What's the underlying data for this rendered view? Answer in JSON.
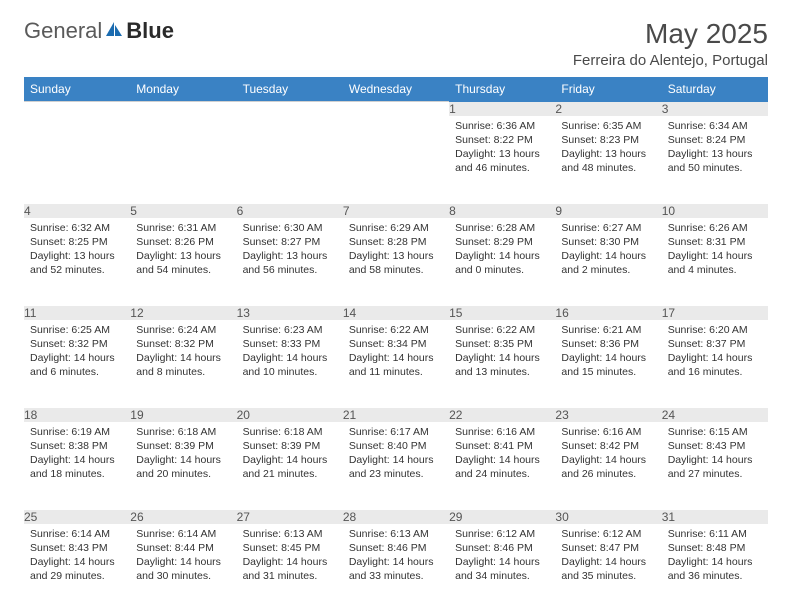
{
  "brand": {
    "part1": "General",
    "part2": "Blue"
  },
  "title": "May 2025",
  "location": "Ferreira do Alentejo, Portugal",
  "colors": {
    "header_bg": "#3a82c4",
    "header_text": "#ffffff",
    "daynum_bg": "#eaeaea",
    "cell_text": "#333333",
    "title_text": "#4a4a4a",
    "logo_gray": "#5a5a5a",
    "logo_blue": "#1a6bb0",
    "border": "#d0d0d0"
  },
  "typography": {
    "title_fontsize": 28,
    "location_fontsize": 15,
    "header_fontsize": 12,
    "daynum_fontsize": 12,
    "cell_fontsize": 10.5,
    "logo_fontsize": 22
  },
  "weekdays": [
    "Sunday",
    "Monday",
    "Tuesday",
    "Wednesday",
    "Thursday",
    "Friday",
    "Saturday"
  ],
  "weeks": [
    [
      null,
      null,
      null,
      null,
      {
        "num": "1",
        "sunrise": "6:36 AM",
        "sunset": "8:22 PM",
        "daylight": "13 hours and 46 minutes."
      },
      {
        "num": "2",
        "sunrise": "6:35 AM",
        "sunset": "8:23 PM",
        "daylight": "13 hours and 48 minutes."
      },
      {
        "num": "3",
        "sunrise": "6:34 AM",
        "sunset": "8:24 PM",
        "daylight": "13 hours and 50 minutes."
      }
    ],
    [
      {
        "num": "4",
        "sunrise": "6:32 AM",
        "sunset": "8:25 PM",
        "daylight": "13 hours and 52 minutes."
      },
      {
        "num": "5",
        "sunrise": "6:31 AM",
        "sunset": "8:26 PM",
        "daylight": "13 hours and 54 minutes."
      },
      {
        "num": "6",
        "sunrise": "6:30 AM",
        "sunset": "8:27 PM",
        "daylight": "13 hours and 56 minutes."
      },
      {
        "num": "7",
        "sunrise": "6:29 AM",
        "sunset": "8:28 PM",
        "daylight": "13 hours and 58 minutes."
      },
      {
        "num": "8",
        "sunrise": "6:28 AM",
        "sunset": "8:29 PM",
        "daylight": "14 hours and 0 minutes."
      },
      {
        "num": "9",
        "sunrise": "6:27 AM",
        "sunset": "8:30 PM",
        "daylight": "14 hours and 2 minutes."
      },
      {
        "num": "10",
        "sunrise": "6:26 AM",
        "sunset": "8:31 PM",
        "daylight": "14 hours and 4 minutes."
      }
    ],
    [
      {
        "num": "11",
        "sunrise": "6:25 AM",
        "sunset": "8:32 PM",
        "daylight": "14 hours and 6 minutes."
      },
      {
        "num": "12",
        "sunrise": "6:24 AM",
        "sunset": "8:32 PM",
        "daylight": "14 hours and 8 minutes."
      },
      {
        "num": "13",
        "sunrise": "6:23 AM",
        "sunset": "8:33 PM",
        "daylight": "14 hours and 10 minutes."
      },
      {
        "num": "14",
        "sunrise": "6:22 AM",
        "sunset": "8:34 PM",
        "daylight": "14 hours and 11 minutes."
      },
      {
        "num": "15",
        "sunrise": "6:22 AM",
        "sunset": "8:35 PM",
        "daylight": "14 hours and 13 minutes."
      },
      {
        "num": "16",
        "sunrise": "6:21 AM",
        "sunset": "8:36 PM",
        "daylight": "14 hours and 15 minutes."
      },
      {
        "num": "17",
        "sunrise": "6:20 AM",
        "sunset": "8:37 PM",
        "daylight": "14 hours and 16 minutes."
      }
    ],
    [
      {
        "num": "18",
        "sunrise": "6:19 AM",
        "sunset": "8:38 PM",
        "daylight": "14 hours and 18 minutes."
      },
      {
        "num": "19",
        "sunrise": "6:18 AM",
        "sunset": "8:39 PM",
        "daylight": "14 hours and 20 minutes."
      },
      {
        "num": "20",
        "sunrise": "6:18 AM",
        "sunset": "8:39 PM",
        "daylight": "14 hours and 21 minutes."
      },
      {
        "num": "21",
        "sunrise": "6:17 AM",
        "sunset": "8:40 PM",
        "daylight": "14 hours and 23 minutes."
      },
      {
        "num": "22",
        "sunrise": "6:16 AM",
        "sunset": "8:41 PM",
        "daylight": "14 hours and 24 minutes."
      },
      {
        "num": "23",
        "sunrise": "6:16 AM",
        "sunset": "8:42 PM",
        "daylight": "14 hours and 26 minutes."
      },
      {
        "num": "24",
        "sunrise": "6:15 AM",
        "sunset": "8:43 PM",
        "daylight": "14 hours and 27 minutes."
      }
    ],
    [
      {
        "num": "25",
        "sunrise": "6:14 AM",
        "sunset": "8:43 PM",
        "daylight": "14 hours and 29 minutes."
      },
      {
        "num": "26",
        "sunrise": "6:14 AM",
        "sunset": "8:44 PM",
        "daylight": "14 hours and 30 minutes."
      },
      {
        "num": "27",
        "sunrise": "6:13 AM",
        "sunset": "8:45 PM",
        "daylight": "14 hours and 31 minutes."
      },
      {
        "num": "28",
        "sunrise": "6:13 AM",
        "sunset": "8:46 PM",
        "daylight": "14 hours and 33 minutes."
      },
      {
        "num": "29",
        "sunrise": "6:12 AM",
        "sunset": "8:46 PM",
        "daylight": "14 hours and 34 minutes."
      },
      {
        "num": "30",
        "sunrise": "6:12 AM",
        "sunset": "8:47 PM",
        "daylight": "14 hours and 35 minutes."
      },
      {
        "num": "31",
        "sunrise": "6:11 AM",
        "sunset": "8:48 PM",
        "daylight": "14 hours and 36 minutes."
      }
    ]
  ],
  "labels": {
    "sunrise_prefix": "Sunrise: ",
    "sunset_prefix": "Sunset: ",
    "daylight_prefix": "Daylight: "
  }
}
